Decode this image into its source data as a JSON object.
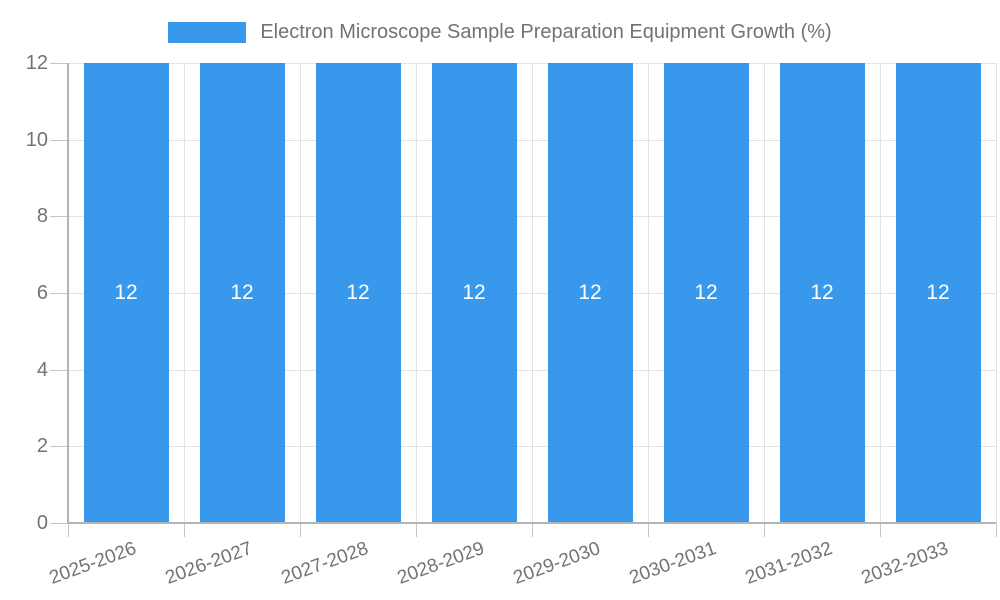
{
  "colors": {
    "bar": "#3898ec",
    "bar_label": "#ffffff",
    "text": "#737373",
    "axis_line": "#b3b3b3",
    "tick_line": "#c6c6c6",
    "grid_line": "#e3e3e3",
    "background": "#ffffff"
  },
  "chart_data": {
    "type": "bar",
    "title": "Electron Microscope Sample Preparation Equipment Growth (%)",
    "legend_position": "top",
    "categories": [
      "2025-2026",
      "2026-2027",
      "2027-2028",
      "2028-2029",
      "2029-2030",
      "2030-2031",
      "2031-2032",
      "2032-2033"
    ],
    "values": [
      12,
      12,
      12,
      12,
      12,
      12,
      12,
      12
    ],
    "value_labels": [
      "12",
      "12",
      "12",
      "12",
      "12",
      "12",
      "12",
      "12"
    ],
    "ytick_labels": [
      "0",
      "2",
      "4",
      "6",
      "8",
      "10",
      "12"
    ],
    "yticks": [
      0,
      2,
      4,
      6,
      8,
      10,
      12
    ],
    "ylim": [
      0,
      12
    ],
    "xlabel": "",
    "ylabel": "",
    "grid": true
  }
}
